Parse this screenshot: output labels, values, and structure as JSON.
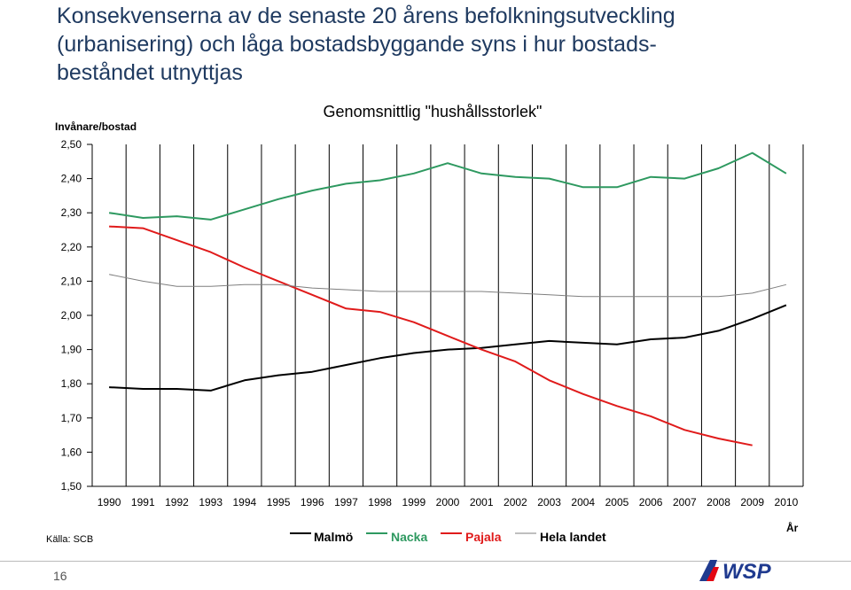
{
  "slide": {
    "title_lines": [
      "Konsekvenserna av de senaste 20 årens befolkningsutveckling",
      "(urbanisering) och låga bostadsbyggande syns i hur bostads-",
      "beståndet utnyttjas"
    ],
    "source": "Källa: SCB",
    "page_number": "16",
    "logo_text": "WSP",
    "colors": {
      "title": "#1f3a60",
      "logo": "#1f3a8f",
      "logo_accent": "#e30613"
    }
  },
  "chart_data": {
    "type": "line",
    "title": "Genomsnittlig \"hushållsstorlek\"",
    "ylabel": "Invånare/bostad",
    "xlabel": "År",
    "ylim": [
      1.5,
      2.5
    ],
    "yticks": [
      "2,50",
      "2,40",
      "2,30",
      "2,20",
      "2,10",
      "2,00",
      "1,90",
      "1,80",
      "1,70",
      "1,60",
      "1,50"
    ],
    "categories": [
      "1990",
      "1991",
      "1992",
      "1993",
      "1994",
      "1995",
      "1996",
      "1997",
      "1998",
      "1999",
      "2000",
      "2001",
      "2002",
      "2003",
      "2004",
      "2005",
      "2006",
      "2007",
      "2008",
      "2009",
      "2010"
    ],
    "grid": true,
    "legend_position": "bottom",
    "series": [
      {
        "name": "Malmö",
        "color": "#000000",
        "width": 2,
        "values": [
          1.79,
          1.785,
          1.785,
          1.78,
          1.81,
          1.825,
          1.835,
          1.855,
          1.875,
          1.89,
          1.9,
          1.905,
          1.915,
          1.925,
          1.92,
          1.915,
          1.93,
          1.935,
          1.955,
          1.99,
          2.03
        ]
      },
      {
        "name": "Nacka",
        "color": "#2e9960",
        "width": 2,
        "values": [
          2.3,
          2.285,
          2.29,
          2.28,
          2.31,
          2.34,
          2.365,
          2.385,
          2.395,
          2.415,
          2.445,
          2.415,
          2.405,
          2.4,
          2.375,
          2.375,
          2.405,
          2.4,
          2.43,
          2.475,
          2.415
        ]
      },
      {
        "name": "Pajala",
        "color": "#e01b1b",
        "width": 2,
        "values": [
          2.26,
          2.255,
          2.22,
          2.185,
          2.14,
          2.1,
          2.06,
          2.02,
          2.01,
          1.98,
          1.94,
          1.9,
          1.865,
          1.81,
          1.77,
          1.735,
          1.705,
          1.665,
          1.64,
          1.62,
          null
        ]
      },
      {
        "name": "Hela landet",
        "color": "#7f7f7f",
        "width": 1,
        "values": [
          2.12,
          2.1,
          2.085,
          2.085,
          2.09,
          2.09,
          2.08,
          2.075,
          2.07,
          2.07,
          2.07,
          2.07,
          2.065,
          2.06,
          2.055,
          2.055,
          2.055,
          2.055,
          2.055,
          2.065,
          2.09
        ]
      }
    ]
  }
}
